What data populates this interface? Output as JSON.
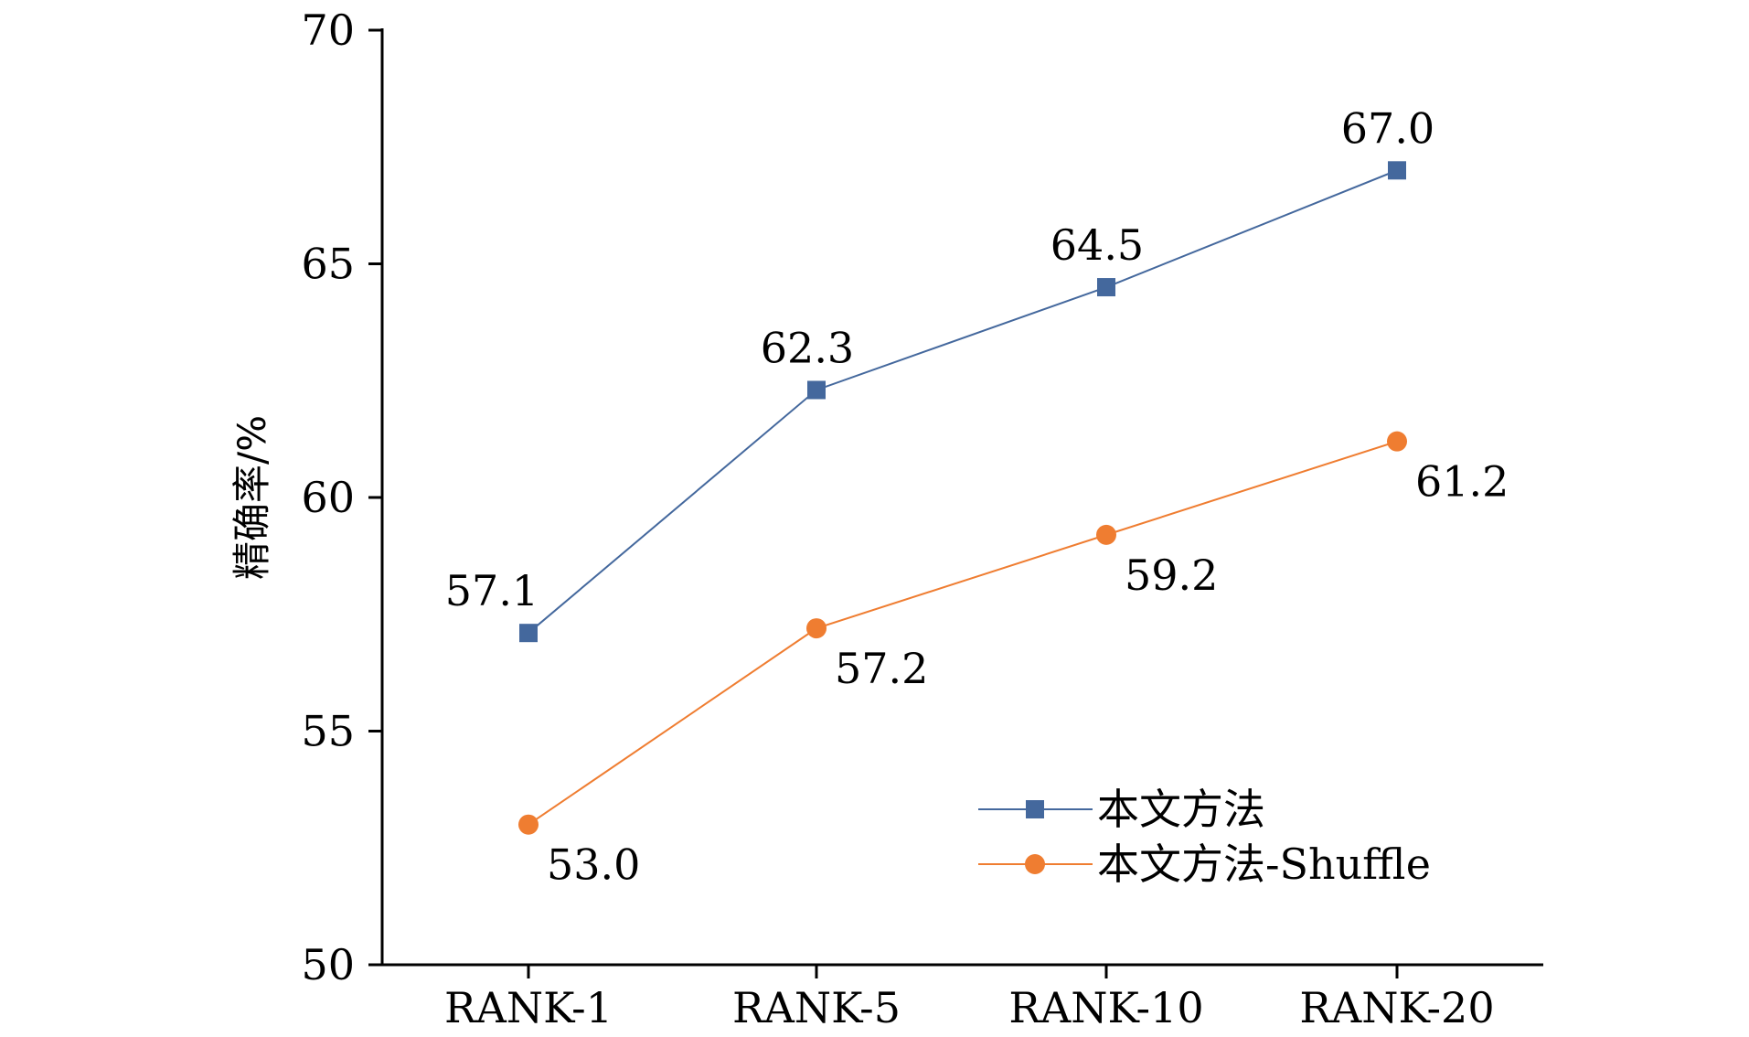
{
  "chart_data": {
    "type": "line",
    "title": "",
    "xlabel": "",
    "ylabel": "精确率/%",
    "ylim": [
      50,
      70
    ],
    "yticks": [
      50,
      55,
      60,
      65,
      70
    ],
    "categories": [
      "RANK-1",
      "RANK-5",
      "RANK-10",
      "RANK-20"
    ],
    "grid": false,
    "legend_position": "bottom-right",
    "series": [
      {
        "name": "本文方法",
        "values": [
          57.1,
          62.3,
          64.5,
          67.0
        ],
        "labels": [
          "57.1",
          "62.3",
          "64.5",
          "67.0"
        ],
        "color": "#44689d",
        "marker": "square",
        "label_position": "above"
      },
      {
        "name": "本文方法-Shuffle",
        "values": [
          53.0,
          57.2,
          59.2,
          61.2
        ],
        "labels": [
          "53.0",
          "57.2",
          "59.2",
          "61.2"
        ],
        "color": "#ef7d31",
        "marker": "circle",
        "label_position": "below"
      }
    ]
  }
}
